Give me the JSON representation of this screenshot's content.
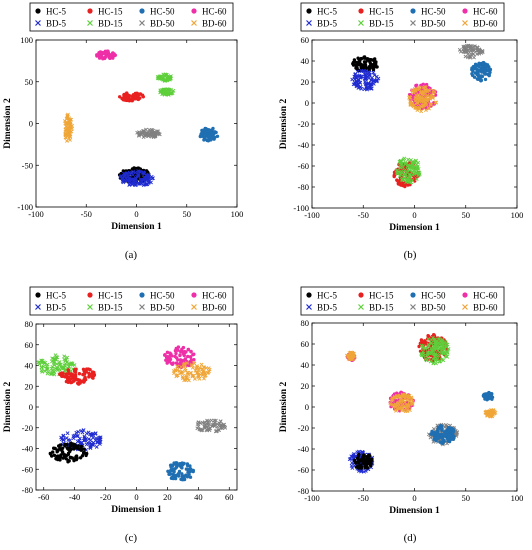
{
  "figure": {
    "legend": [
      {
        "label": "HC-5",
        "marker": "dot",
        "color": "#000000"
      },
      {
        "label": "HC-15",
        "marker": "dot",
        "color": "#e8201f"
      },
      {
        "label": "HC-50",
        "marker": "dot",
        "color": "#1f6fb2"
      },
      {
        "label": "HC-60",
        "marker": "dot",
        "color": "#ee2fa7"
      },
      {
        "label": "BD-5",
        "marker": "x",
        "color": "#1f2bd0"
      },
      {
        "label": "BD-15",
        "marker": "x",
        "color": "#5dcf3a"
      },
      {
        "label": "BD-50",
        "marker": "x",
        "color": "#808080"
      },
      {
        "label": "BD-60",
        "marker": "x",
        "color": "#f0a637"
      }
    ]
  },
  "chart_data": [
    {
      "type": "scatter",
      "panel_label": "(a)",
      "xlabel": "Dimension 1",
      "ylabel": "Dimension 2",
      "xlim": [
        -100,
        100
      ],
      "ylim": [
        -100,
        100
      ],
      "xticks": [
        -100,
        -50,
        0,
        50,
        100
      ],
      "yticks": [
        -100,
        -50,
        0,
        50,
        100
      ],
      "clusters": [
        {
          "series": "HC-60",
          "cx": -30,
          "cy": 82,
          "rx": 10,
          "ry": 5
        },
        {
          "series": "HC-15",
          "cx": -5,
          "cy": 32,
          "rx": 12,
          "ry": 5
        },
        {
          "series": "BD-15",
          "cx": 28,
          "cy": 55,
          "rx": 7,
          "ry": 4
        },
        {
          "series": "BD-15",
          "cx": 30,
          "cy": 38,
          "rx": 7,
          "ry": 4
        },
        {
          "series": "BD-60",
          "cx": -68,
          "cy": -5,
          "rx": 4,
          "ry": 17
        },
        {
          "series": "BD-50",
          "cx": 12,
          "cy": -12,
          "rx": 12,
          "ry": 5
        },
        {
          "series": "HC-50",
          "cx": 72,
          "cy": -13,
          "rx": 9,
          "ry": 8
        },
        {
          "series": "HC-5",
          "cx": -2,
          "cy": -62,
          "rx": 15,
          "ry": 9
        },
        {
          "series": "BD-5",
          "cx": 0,
          "cy": -66,
          "rx": 17,
          "ry": 9
        }
      ]
    },
    {
      "type": "scatter",
      "panel_label": "(b)",
      "xlabel": "Dimension 1",
      "ylabel": "Dimension 2",
      "xlim": [
        -100,
        100
      ],
      "ylim": [
        -100,
        60
      ],
      "xticks": [
        -100,
        -50,
        0,
        50,
        100
      ],
      "yticks": [
        -100,
        -80,
        -60,
        -40,
        -20,
        0,
        20,
        40,
        60
      ],
      "clusters": [
        {
          "series": "HC-5",
          "cx": -48,
          "cy": 37,
          "rx": 13,
          "ry": 7
        },
        {
          "series": "BD-5",
          "cx": -48,
          "cy": 22,
          "rx": 13,
          "ry": 10
        },
        {
          "series": "BD-50",
          "cx": 55,
          "cy": 49,
          "rx": 12,
          "ry": 6
        },
        {
          "series": "HC-50",
          "cx": 65,
          "cy": 30,
          "rx": 10,
          "ry": 9
        },
        {
          "series": "HC-60",
          "cx": 8,
          "cy": 6,
          "rx": 14,
          "ry": 12
        },
        {
          "series": "BD-60",
          "cx": 8,
          "cy": 4,
          "rx": 14,
          "ry": 12
        },
        {
          "series": "HC-15",
          "cx": -8,
          "cy": -68,
          "rx": 12,
          "ry": 12
        },
        {
          "series": "BD-15",
          "cx": -6,
          "cy": -64,
          "rx": 12,
          "ry": 12
        }
      ]
    },
    {
      "type": "scatter",
      "panel_label": "(c)",
      "xlabel": "Dimension 1",
      "ylabel": "Dimension 2",
      "xlim": [
        -65,
        65
      ],
      "ylim": [
        -80,
        80
      ],
      "xticks": [
        -60,
        -40,
        -20,
        0,
        20,
        40,
        60
      ],
      "yticks": [
        -80,
        -60,
        -40,
        -20,
        0,
        20,
        40,
        60,
        80
      ],
      "clusters": [
        {
          "series": "BD-15",
          "cx": -52,
          "cy": 40,
          "rx": 12,
          "ry": 10
        },
        {
          "series": "HC-15",
          "cx": -38,
          "cy": 30,
          "rx": 12,
          "ry": 8
        },
        {
          "series": "HC-60",
          "cx": 28,
          "cy": 48,
          "rx": 10,
          "ry": 10
        },
        {
          "series": "BD-60",
          "cx": 36,
          "cy": 34,
          "rx": 12,
          "ry": 9
        },
        {
          "series": "BD-50",
          "cx": 48,
          "cy": -18,
          "rx": 10,
          "ry": 6
        },
        {
          "series": "BD-5",
          "cx": -36,
          "cy": -32,
          "rx": 14,
          "ry": 10
        },
        {
          "series": "HC-5",
          "cx": -44,
          "cy": -44,
          "rx": 12,
          "ry": 9
        },
        {
          "series": "HC-50",
          "cx": 28,
          "cy": -62,
          "rx": 9,
          "ry": 9
        }
      ]
    },
    {
      "type": "scatter",
      "panel_label": "(d)",
      "xlabel": "Dimension 1",
      "ylabel": "Dimension 2",
      "xlim": [
        -100,
        100
      ],
      "ylim": [
        -80,
        80
      ],
      "xticks": [
        -100,
        -50,
        0,
        50,
        100
      ],
      "yticks": [
        -80,
        -60,
        -40,
        -20,
        0,
        20,
        40,
        60,
        80
      ],
      "clusters": [
        {
          "series": "HC-60",
          "cx": -62,
          "cy": 48,
          "rx": 4,
          "ry": 4
        },
        {
          "series": "BD-60",
          "cx": -62,
          "cy": 49,
          "rx": 4,
          "ry": 4
        },
        {
          "series": "HC-15",
          "cx": 18,
          "cy": 56,
          "rx": 14,
          "ry": 13
        },
        {
          "series": "BD-15",
          "cx": 20,
          "cy": 54,
          "rx": 14,
          "ry": 13
        },
        {
          "series": "HC-60",
          "cx": -13,
          "cy": 5,
          "rx": 12,
          "ry": 9
        },
        {
          "series": "BD-60",
          "cx": -12,
          "cy": 4,
          "rx": 12,
          "ry": 9
        },
        {
          "series": "HC-50",
          "cx": 72,
          "cy": 10,
          "rx": 5,
          "ry": 4
        },
        {
          "series": "BD-60",
          "cx": 74,
          "cy": -6,
          "rx": 5,
          "ry": 4
        },
        {
          "series": "BD-50",
          "cx": 28,
          "cy": -26,
          "rx": 14,
          "ry": 10
        },
        {
          "series": "HC-50",
          "cx": 28,
          "cy": -26,
          "rx": 12,
          "ry": 9
        },
        {
          "series": "BD-5",
          "cx": -52,
          "cy": -52,
          "rx": 12,
          "ry": 10
        },
        {
          "series": "HC-5",
          "cx": -50,
          "cy": -52,
          "rx": 9,
          "ry": 8
        }
      ]
    }
  ]
}
